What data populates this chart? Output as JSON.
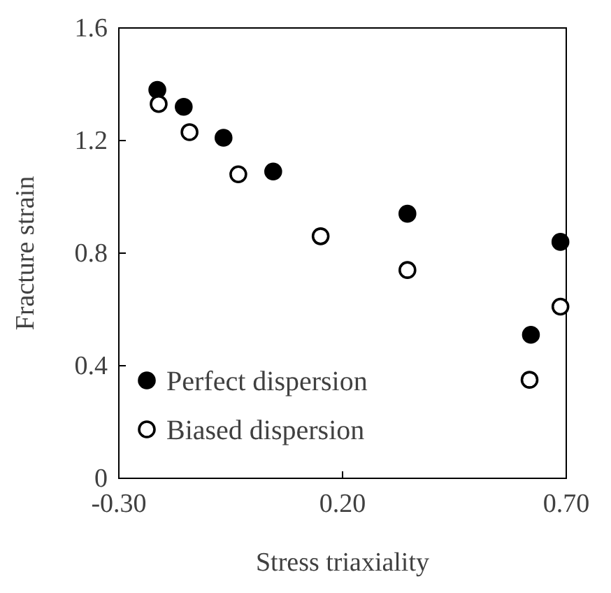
{
  "chart_data": {
    "type": "scatter",
    "xlabel": "Stress triaxiality",
    "ylabel": "Fracture strain",
    "xlim": [
      -0.3,
      0.7
    ],
    "xticks": [
      {
        "value": -0.3,
        "label": "-0.30"
      },
      {
        "value": 0.2,
        "label": "0.20"
      },
      {
        "value": 0.7,
        "label": "0.70"
      }
    ],
    "ylim": [
      0,
      1.6
    ],
    "yticks": [
      0,
      {
        "value": 0.4,
        "label": "0.4"
      },
      {
        "value": 0.8,
        "label": "0.8"
      },
      {
        "value": 1.2,
        "label": "1.2"
      },
      {
        "value": 1.6,
        "label": "1.6"
      }
    ],
    "grid": false,
    "legend": "bottom left",
    "marker": "circle",
    "series": [
      {
        "name": "Perfect dispersion",
        "color": "#000000",
        "x": [
          -0.214,
          -0.155,
          -0.066,
          0.045,
          0.345,
          0.621,
          0.687
        ],
        "values": [
          1.38,
          1.32,
          1.21,
          1.09,
          0.94,
          0.51,
          0.84
        ]
      },
      {
        "name": "Biased dispersion",
        "color": "#ffffff",
        "x": [
          -0.211,
          -0.142,
          -0.033,
          0.151,
          0.345,
          0.618,
          0.687
        ],
        "values": [
          1.33,
          1.23,
          1.08,
          0.86,
          0.74,
          0.35,
          0.61
        ]
      }
    ]
  }
}
